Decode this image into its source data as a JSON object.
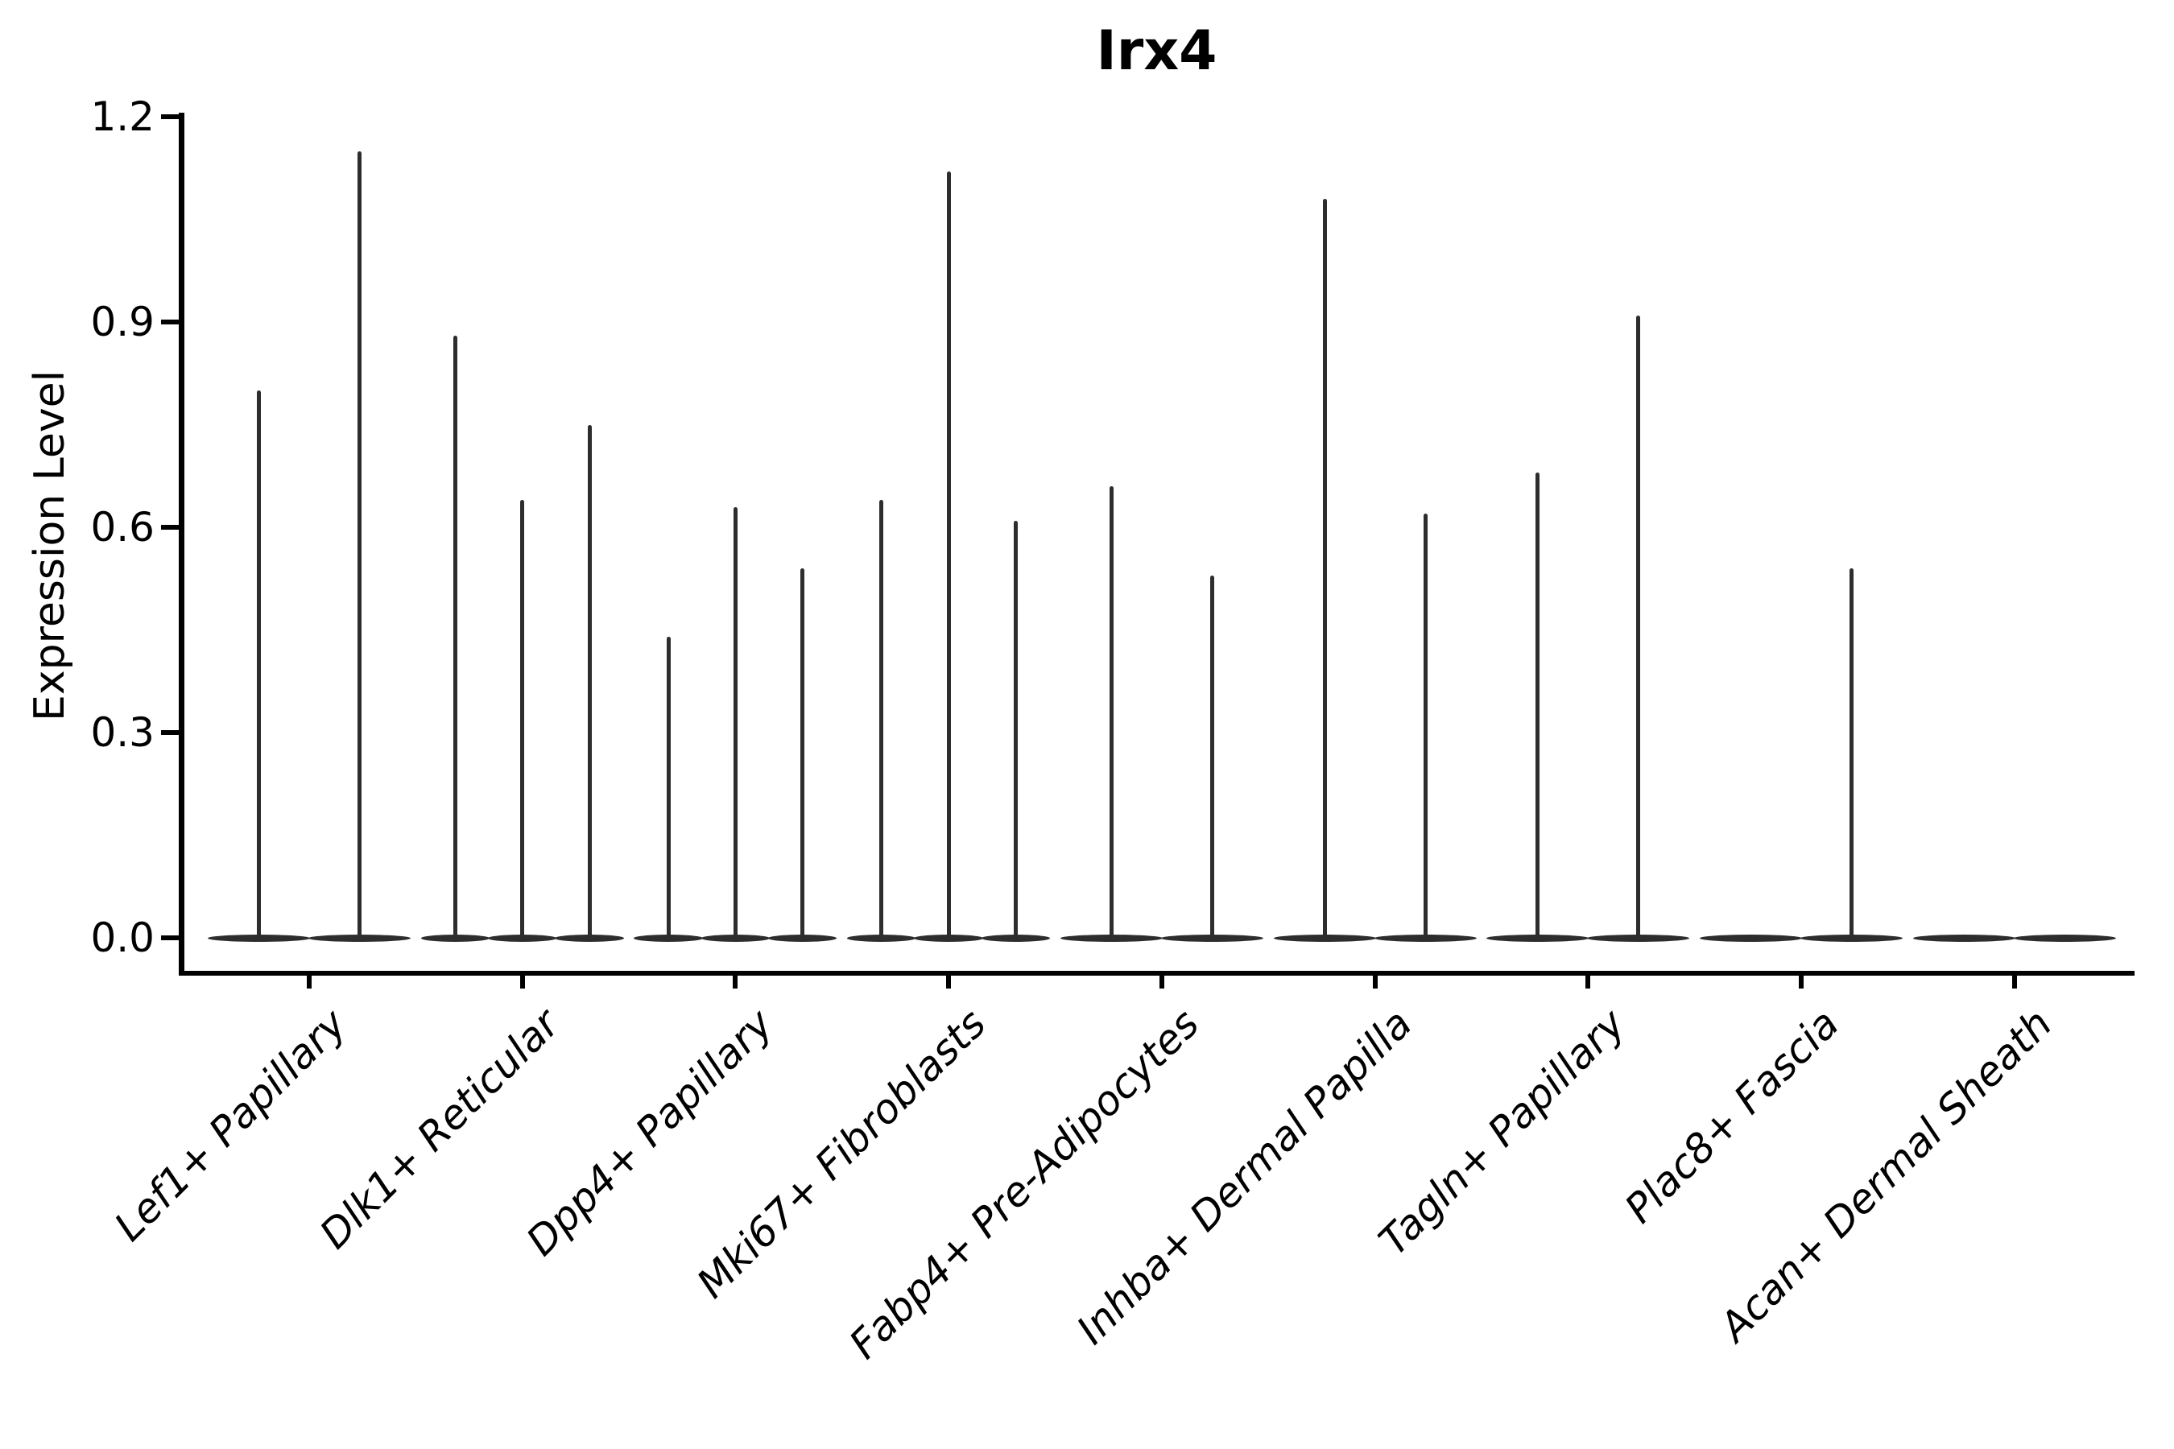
{
  "figure": {
    "background_color": "#ffffff",
    "axis_color": "#000000",
    "violin_color": "#2d2d2d"
  },
  "chart_data": {
    "type": "violin",
    "title": "Irx4",
    "xlabel": "",
    "ylabel": "Expression Level",
    "ytick_labels": [
      "0.0",
      "0.3",
      "0.6",
      "0.9",
      "1.2"
    ],
    "ytick_values": [
      0.0,
      0.3,
      0.6,
      0.9,
      1.2
    ],
    "ylim": [
      0.0,
      1.26
    ],
    "grid": false,
    "legend": "none",
    "description": "Single-cell expression violin plot; each cluster contains 2-3 thin violins that are flat at 0 with a narrow spike up to the maximum expression value.",
    "categories": [
      "Lef1+ Papillary",
      "Dlk1+ Reticular",
      "Dpp4+ Papillary",
      "Mki67+ Fibroblasts",
      "Fabp4+ Pre-Adipocytes",
      "Inhba+ Dermal Papilla",
      "Tagln+ Papillary",
      "Plac8+ Fascia",
      "Acan+ Dermal Sheath"
    ],
    "groups": [
      {
        "label": "Lef1+ Papillary",
        "violin_max_values": [
          0.8,
          1.15
        ]
      },
      {
        "label": "Dlk1+ Reticular",
        "violin_max_values": [
          0.88,
          0.64,
          0.75
        ]
      },
      {
        "label": "Dpp4+ Papillary",
        "violin_max_values": [
          0.44,
          0.63,
          0.54
        ]
      },
      {
        "label": "Mki67+ Fibroblasts",
        "violin_max_values": [
          0.64,
          1.12,
          0.61
        ]
      },
      {
        "label": "Fabp4+ Pre-Adipocytes",
        "violin_max_values": [
          0.66,
          0.53
        ]
      },
      {
        "label": "Inhba+ Dermal Papilla",
        "violin_max_values": [
          1.08,
          0.62
        ]
      },
      {
        "label": "Tagln+ Papillary",
        "violin_max_values": [
          0.68,
          0.91
        ]
      },
      {
        "label": "Plac8+ Fascia",
        "violin_max_values": [
          0.0,
          0.54
        ]
      },
      {
        "label": "Acan+ Dermal Sheath",
        "violin_max_values": [
          0.0,
          0.0
        ]
      }
    ]
  }
}
